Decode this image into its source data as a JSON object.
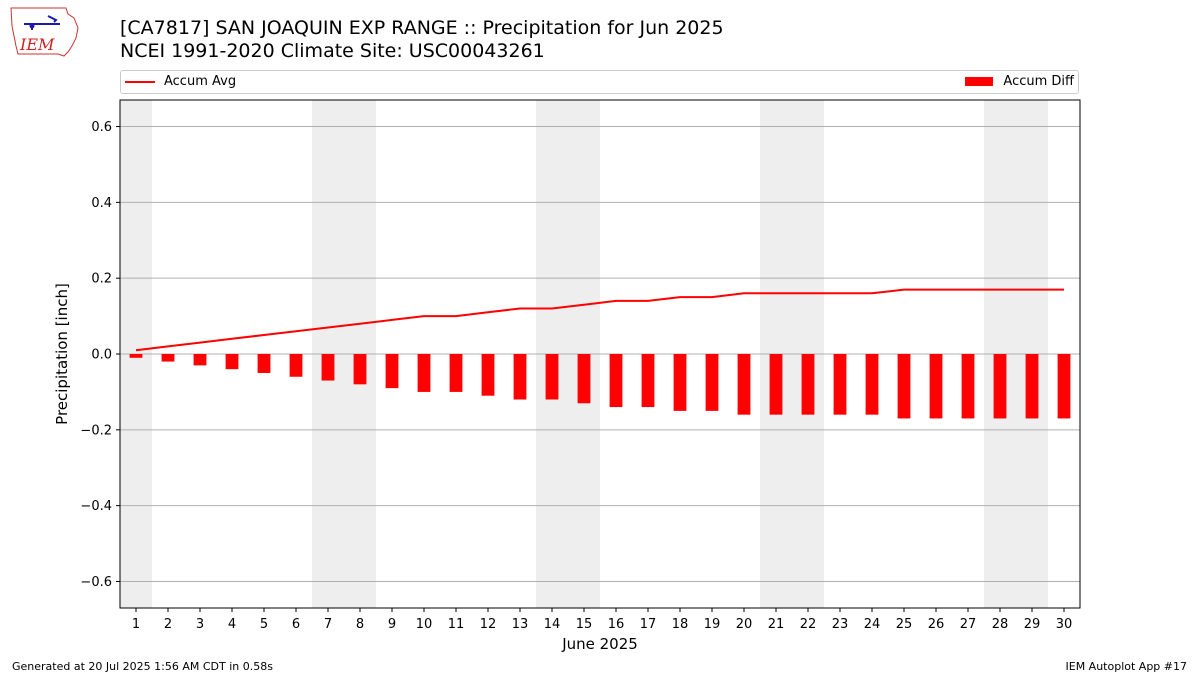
{
  "header": {
    "title_line1": "[CA7817] SAN JOAQUIN EXP RANGE :: Precipitation for Jun 2025",
    "title_line2": "NCEI 1991-2020 Climate Site: USC00043261",
    "logo_text": "IEM"
  },
  "legend": {
    "line_label": "Accum Avg",
    "bar_label": "Accum Diff",
    "placement": "top"
  },
  "footer": {
    "left": "Generated at 20 Jul 2025 1:56 AM CDT in 0.58s",
    "right": "IEM Autoplot App #17"
  },
  "colors": {
    "series": "#ff0000",
    "weekend_shade": "#eeeeee",
    "grid": "#b0b0b0"
  },
  "chart_data": {
    "type": "bar",
    "xlabel": "June 2025",
    "ylabel": "Precipitation [inch]",
    "ylim": [
      -0.67,
      0.67
    ],
    "yticks": [
      -0.6,
      -0.4,
      -0.2,
      0.0,
      0.2,
      0.4,
      0.6
    ],
    "ytick_labels": [
      "−0.6",
      "−0.4",
      "−0.2",
      "0.0",
      "0.2",
      "0.4",
      "0.6"
    ],
    "grid": "horizontal",
    "categories": [
      "1",
      "2",
      "3",
      "4",
      "5",
      "6",
      "7",
      "8",
      "9",
      "10",
      "11",
      "12",
      "13",
      "14",
      "15",
      "16",
      "17",
      "18",
      "19",
      "20",
      "21",
      "22",
      "23",
      "24",
      "25",
      "26",
      "27",
      "28",
      "29",
      "30"
    ],
    "shaded_days": [
      1,
      7,
      8,
      14,
      15,
      21,
      22,
      28,
      29
    ],
    "series": [
      {
        "name": "Accum Avg",
        "kind": "line",
        "values": [
          0.01,
          0.02,
          0.03,
          0.04,
          0.05,
          0.06,
          0.07,
          0.08,
          0.09,
          0.1,
          0.1,
          0.11,
          0.12,
          0.12,
          0.13,
          0.14,
          0.14,
          0.15,
          0.15,
          0.16,
          0.16,
          0.16,
          0.16,
          0.16,
          0.17,
          0.17,
          0.17,
          0.17,
          0.17,
          0.17
        ]
      },
      {
        "name": "Accum Diff",
        "kind": "bar",
        "values": [
          -0.01,
          -0.02,
          -0.03,
          -0.04,
          -0.05,
          -0.06,
          -0.07,
          -0.08,
          -0.09,
          -0.1,
          -0.1,
          -0.11,
          -0.12,
          -0.12,
          -0.13,
          -0.14,
          -0.14,
          -0.15,
          -0.15,
          -0.16,
          -0.16,
          -0.16,
          -0.16,
          -0.16,
          -0.17,
          -0.17,
          -0.17,
          -0.17,
          -0.17,
          -0.17
        ]
      }
    ]
  }
}
